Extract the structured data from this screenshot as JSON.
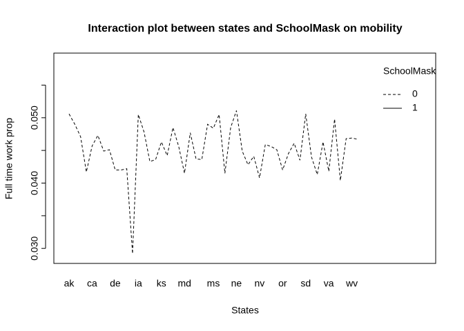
{
  "chart_data": {
    "type": "line",
    "title": "Interaction plot between states and SchoolMask on mobility",
    "x_label": "States",
    "y_label": "Full time work prop",
    "legend_title": "SchoolMask",
    "categories": [
      "ak",
      null,
      null,
      null,
      "ca",
      null,
      null,
      null,
      "de",
      null,
      null,
      null,
      "ia",
      null,
      null,
      null,
      "ks",
      null,
      null,
      null,
      "md",
      null,
      null,
      null,
      null,
      "ms",
      null,
      null,
      null,
      "ne",
      null,
      null,
      null,
      "nv",
      null,
      null,
      null,
      "or",
      null,
      null,
      null,
      "sd",
      null,
      null,
      null,
      "va",
      null,
      null,
      null,
      "wv",
      null
    ],
    "series": [
      {
        "name": "0",
        "color": "#000000",
        "dash": "dashed",
        "values": [
          0.0506,
          0.049,
          0.0471,
          0.0417,
          0.0457,
          0.0473,
          0.0449,
          0.0451,
          0.042,
          0.042,
          0.0422,
          0.0292,
          0.0505,
          0.0478,
          0.0433,
          0.0436,
          0.0463,
          0.0442,
          0.0485,
          0.0456,
          0.0415,
          0.0477,
          0.0437,
          0.0436,
          0.049,
          0.0484,
          0.0505,
          0.0415,
          0.0485,
          0.0511,
          0.0449,
          0.0428,
          0.0441,
          0.0408,
          0.0459,
          0.0456,
          0.0451,
          0.042,
          0.0445,
          0.0461,
          0.0435,
          0.0506,
          0.044,
          0.0413,
          0.0463,
          0.0418,
          0.0498,
          0.0404,
          0.0468,
          0.0469,
          0.0467
        ]
      },
      {
        "name": "1",
        "color": "#000000",
        "dash": "solid",
        "values": [
          null,
          null,
          null,
          null,
          null,
          null,
          null,
          null,
          null,
          null,
          null,
          null,
          null,
          null,
          null,
          null,
          null,
          null,
          null,
          null,
          null,
          null,
          null,
          null,
          null,
          null,
          null,
          null,
          null,
          null,
          null,
          null,
          null,
          null,
          null,
          null,
          null,
          null,
          null,
          null,
          null,
          null,
          null,
          null,
          null,
          null,
          null,
          null,
          null,
          null,
          null
        ]
      }
    ],
    "ylim": [
      0.0277,
      0.0599
    ],
    "yticks": [
      {
        "value": 0.03,
        "label": "0.030"
      },
      {
        "value": 0.04,
        "label": "0.040"
      },
      {
        "value": 0.05,
        "label": "0.050"
      }
    ],
    "yminor_ticks": [
      0.035,
      0.045,
      0.055
    ],
    "grid": false,
    "legend_position": "top-right"
  }
}
